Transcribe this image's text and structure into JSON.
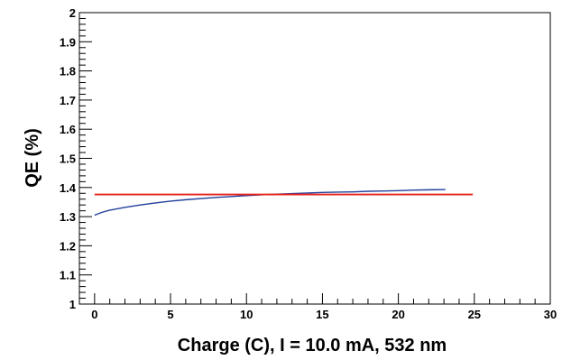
{
  "chart_data": {
    "type": "line",
    "title": "",
    "xlabel": "Charge (C), I = 10.0 mA, 532 nm",
    "ylabel": "QE (%)",
    "xlim": [
      -1,
      30
    ],
    "ylim": [
      1,
      2
    ],
    "x_ticks": [
      "0",
      "5",
      "10",
      "15",
      "20",
      "25",
      "30"
    ],
    "y_ticks": [
      "1",
      "1.1",
      "1.2",
      "1.3",
      "1.4",
      "1.5",
      "1.6",
      "1.7",
      "1.8",
      "1.9",
      "2"
    ],
    "grid": false,
    "legend": "none",
    "series": [
      {
        "color": "#1f3f9a",
        "x": [
          0,
          0.5,
          1,
          2,
          3,
          4,
          5,
          6,
          7,
          8,
          9,
          10,
          11,
          12,
          13,
          14,
          15,
          16,
          17,
          18,
          19,
          20,
          21,
          22,
          23.1
        ],
        "y": [
          1.305,
          1.315,
          1.322,
          1.332,
          1.34,
          1.347,
          1.353,
          1.358,
          1.362,
          1.366,
          1.369,
          1.372,
          1.375,
          1.377,
          1.379,
          1.381,
          1.383,
          1.384,
          1.385,
          1.387,
          1.388,
          1.389,
          1.391,
          1.392,
          1.393
        ]
      },
      {
        "color": "#e8231d",
        "x": [
          0,
          24.9
        ],
        "y": [
          1.376,
          1.376
        ]
      }
    ]
  }
}
